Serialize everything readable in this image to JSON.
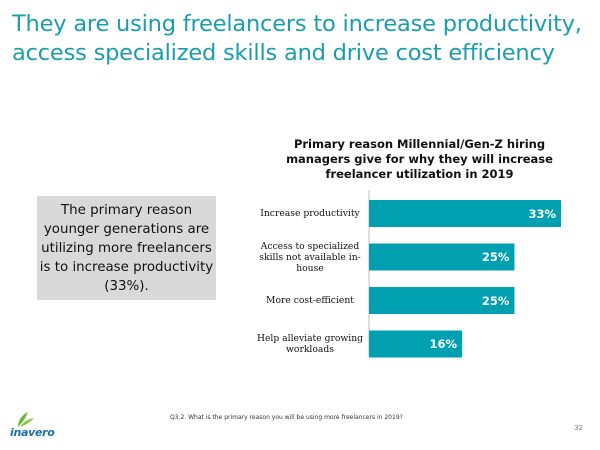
{
  "slide": {
    "title": "They are using freelancers to increase productivity, access specialized skills and drive cost efficiency",
    "callout": "The primary reason younger generations are utilizing more freelancers is to increase productivity (33%).",
    "footnote": "Q3.2. What is the primary reason you will be using more freelancers in 2019?",
    "page_number": "32",
    "logo_text": "inavero",
    "logo_icon": "leaf-icon"
  },
  "colors": {
    "title": "#1a9db0",
    "bar": "#00a0b0",
    "callout_bg": "#d9d9d9",
    "logo_blue": "#1b6fa8",
    "logo_green": "#6fb63f"
  },
  "chart_data": {
    "type": "bar",
    "orientation": "horizontal",
    "title": "Primary reason Millennial/Gen-Z hiring managers give for why they will increase freelancer utilization in 2019",
    "categories": [
      "Increase productivity",
      "Access to specialized skills not available in-house",
      "More cost-efficient",
      "Help alleviate growing workloads"
    ],
    "values": [
      33,
      25,
      25,
      16
    ],
    "value_labels": [
      "33%",
      "25%",
      "25%",
      "16%"
    ],
    "xlim": [
      0,
      35
    ],
    "grid": false,
    "legend": "none"
  }
}
